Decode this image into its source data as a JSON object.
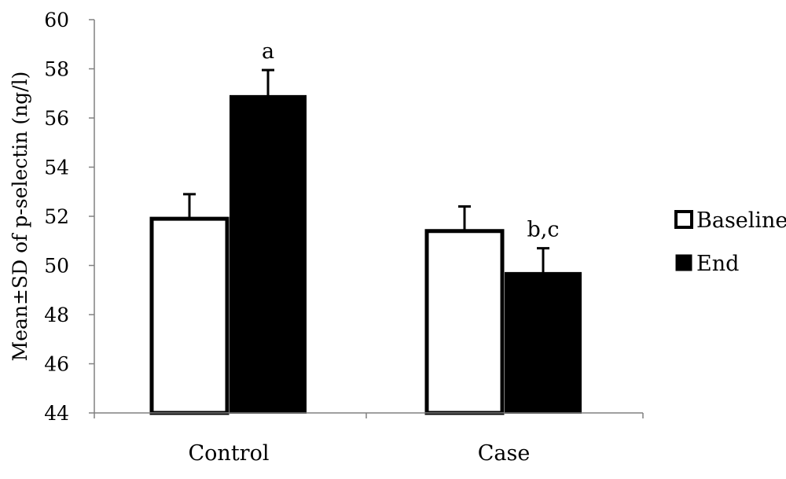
{
  "chart_data": {
    "type": "bar",
    "title": "",
    "xlabel": "",
    "ylabel": "Mean±SD  of p-selectin (ng/l)",
    "ylim": [
      44,
      60
    ],
    "yticks": [
      44,
      46,
      48,
      50,
      52,
      54,
      56,
      58,
      60
    ],
    "categories": [
      "Control",
      "Case"
    ],
    "series": [
      {
        "name": "Baseline",
        "values": [
          51.9,
          51.4
        ],
        "errors": [
          1.0,
          1.0
        ],
        "fill": "#ffffff"
      },
      {
        "name": "End",
        "values": [
          56.9,
          49.7
        ],
        "errors": [
          1.05,
          1.0
        ],
        "fill": "#000000"
      }
    ],
    "annotations": [
      {
        "series": 1,
        "category": 0,
        "text": "a"
      },
      {
        "series": 1,
        "category": 1,
        "text": "b,c"
      }
    ],
    "grid": false,
    "legend": "right",
    "error_bars": "upper"
  }
}
